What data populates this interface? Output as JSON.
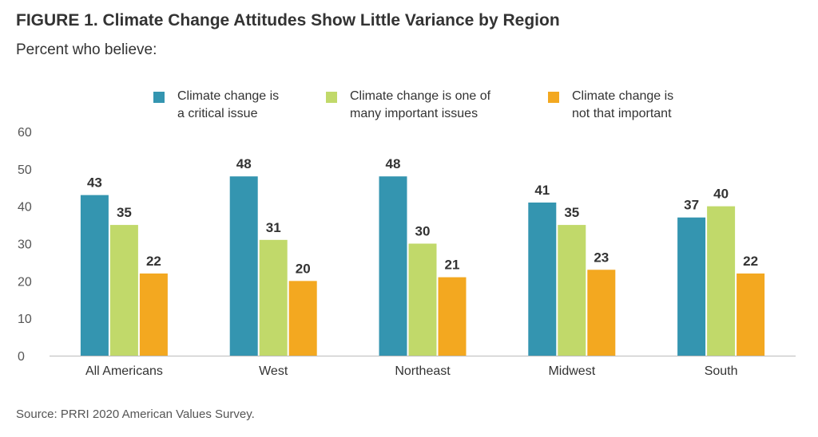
{
  "title": "FIGURE 1. Climate Change Attitudes Show Little Variance by Region",
  "subtitle": "Percent who believe:",
  "source": "Source: PRRI 2020 American Values Survey.",
  "legend": [
    {
      "line1": "Climate change is",
      "line2": "a critical issue",
      "color": "#3495b0"
    },
    {
      "line1": "Climate change is one of",
      "line2": "many important issues",
      "color": "#c1d96a"
    },
    {
      "line1": "Climate change is",
      "line2": "not that important",
      "color": "#f3a820"
    }
  ],
  "chart_data": {
    "type": "bar",
    "title": "FIGURE 1. Climate Change Attitudes Show Little Variance by Region",
    "subtitle": "Percent who believe:",
    "categories": [
      "All Americans",
      "West",
      "Northeast",
      "Midwest",
      "South"
    ],
    "series": [
      {
        "name": "Climate change is a critical issue",
        "color": "#3495b0",
        "values": [
          43,
          48,
          48,
          41,
          37
        ]
      },
      {
        "name": "Climate change is one of many important issues",
        "color": "#c1d96a",
        "values": [
          35,
          31,
          30,
          35,
          40
        ]
      },
      {
        "name": "Climate change is not that important",
        "color": "#f3a820",
        "values": [
          22,
          20,
          21,
          23,
          22
        ]
      }
    ],
    "yticks": [
      0,
      10,
      20,
      30,
      40,
      50,
      60
    ],
    "ylim": [
      0,
      60
    ],
    "xlabel": "",
    "ylabel": "",
    "grid": false,
    "legend_position": "top"
  }
}
